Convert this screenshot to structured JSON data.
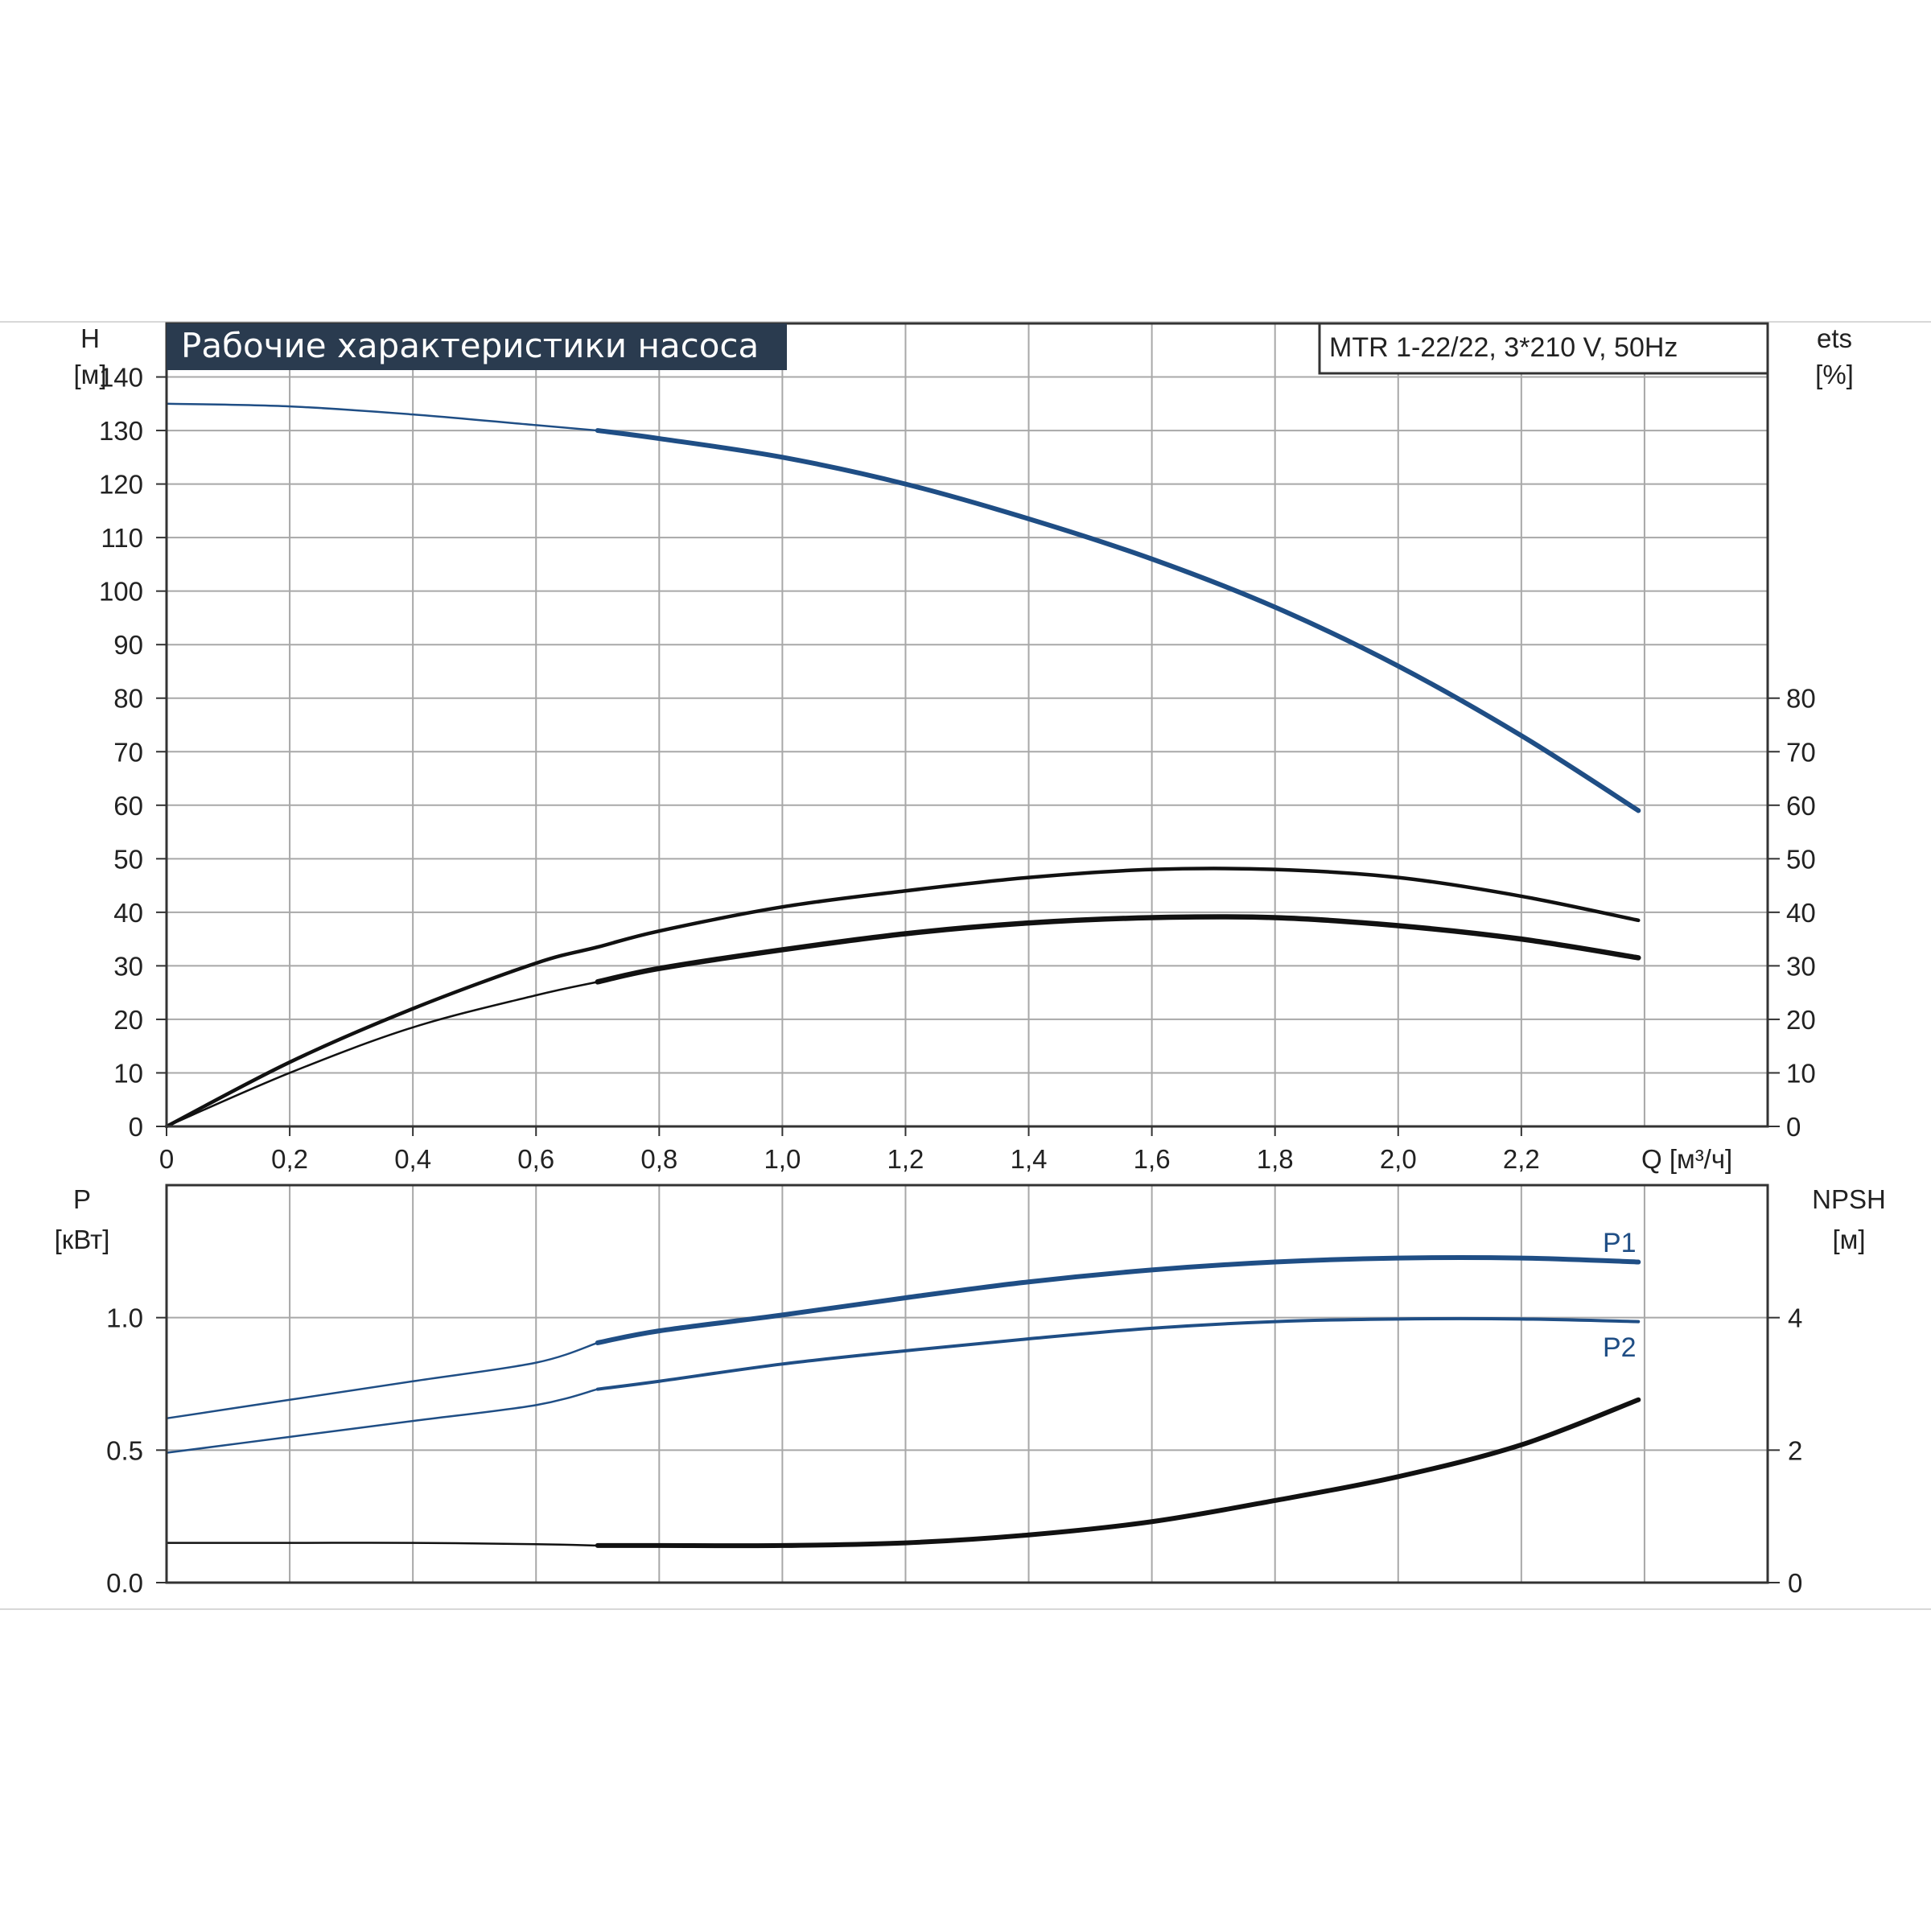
{
  "chart_data": [
    {
      "type": "line",
      "title": "Рабочие характеристики насоса",
      "model_label": "MTR 1-22/22, 3*210 V, 50Hz",
      "left_axis": {
        "label_top": "H",
        "label_unit": "[м]",
        "ylim": [
          0,
          150
        ],
        "ticks": [
          "0",
          "10",
          "20",
          "30",
          "40",
          "50",
          "60",
          "70",
          "80",
          "90",
          "100",
          "110",
          "120",
          "130",
          "140"
        ]
      },
      "right_axis": {
        "label_top": "ets",
        "label_unit": "[%]",
        "ylim": [
          0,
          150
        ],
        "ticks": [
          "0",
          "10",
          "20",
          "30",
          "40",
          "50",
          "60",
          "70",
          "80"
        ]
      },
      "x_axis": {
        "label": "Q [м³/ч]",
        "xlim": [
          0,
          2.6
        ],
        "ticks": [
          "0",
          "0,2",
          "0,4",
          "0,6",
          "0,8",
          "1,0",
          "1,2",
          "1,4",
          "1,6",
          "1,8",
          "2,0",
          "2,2"
        ]
      },
      "grid": true,
      "series": [
        {
          "axis": "left",
          "color": "#1f4e85",
          "operating_range_from": 0.7,
          "x": [
            0,
            0.2,
            0.4,
            0.6,
            0.7,
            0.8,
            1.0,
            1.2,
            1.4,
            1.6,
            1.8,
            2.0,
            2.2,
            2.39
          ],
          "values": [
            135,
            134.5,
            133,
            131,
            130,
            128.5,
            125,
            120,
            113.5,
            106,
            97,
            86,
            73,
            59
          ]
        },
        {
          "axis": "right",
          "color": "#111111",
          "operating_range_from": 0,
          "x": [
            0,
            0.2,
            0.4,
            0.6,
            0.7,
            0.8,
            1.0,
            1.2,
            1.4,
            1.6,
            1.8,
            2.0,
            2.2,
            2.39
          ],
          "values": [
            0,
            12,
            22,
            30.5,
            33.5,
            36.5,
            41,
            44,
            46.5,
            48,
            48,
            46.5,
            43,
            38.5
          ]
        },
        {
          "axis": "right",
          "color": "#111111",
          "operating_range_from": 0.7,
          "x": [
            0,
            0.2,
            0.4,
            0.6,
            0.7,
            0.8,
            1.0,
            1.2,
            1.4,
            1.6,
            1.8,
            2.0,
            2.2,
            2.39
          ],
          "values": [
            0,
            10,
            18.5,
            24.5,
            27,
            29.5,
            33,
            36,
            38,
            39,
            39,
            37.5,
            35,
            31.5
          ]
        }
      ]
    },
    {
      "type": "line",
      "left_axis": {
        "label_top": "P",
        "label_unit": "[кВт]",
        "ylim": [
          0,
          1.5
        ],
        "ticks": [
          "0.0",
          "0.5",
          "1.0"
        ]
      },
      "right_axis": {
        "label_top": "NPSH",
        "label_unit": "[м]",
        "ylim": [
          0,
          6
        ],
        "ticks": [
          "0",
          "2",
          "4"
        ]
      },
      "xlim": [
        0,
        2.6
      ],
      "grid": true,
      "series": [
        {
          "name": "P1",
          "axis": "left",
          "color": "#1f4e85",
          "operating_range_from": 0.7,
          "x": [
            0,
            0.2,
            0.4,
            0.6,
            0.7,
            0.8,
            1.0,
            1.2,
            1.4,
            1.6,
            1.8,
            2.0,
            2.2,
            2.39
          ],
          "values": [
            0.62,
            0.69,
            0.76,
            0.83,
            0.905,
            0.95,
            1.01,
            1.075,
            1.135,
            1.18,
            1.21,
            1.225,
            1.225,
            1.21
          ]
        },
        {
          "name": "P2",
          "axis": "left",
          "color": "#1f4e85",
          "operating_range_from": 0.7,
          "x": [
            0,
            0.2,
            0.4,
            0.6,
            0.7,
            0.8,
            1.0,
            1.2,
            1.4,
            1.6,
            1.8,
            2.0,
            2.2,
            2.39
          ],
          "values": [
            0.49,
            0.55,
            0.61,
            0.67,
            0.73,
            0.76,
            0.825,
            0.875,
            0.92,
            0.96,
            0.985,
            0.995,
            0.995,
            0.985
          ]
        },
        {
          "axis": "right",
          "color": "#111111",
          "operating_range_from": 0.7,
          "x": [
            0,
            0.2,
            0.4,
            0.6,
            0.7,
            0.8,
            1.0,
            1.2,
            1.4,
            1.6,
            1.8,
            2.0,
            2.2,
            2.39
          ],
          "values": [
            0.6,
            0.6,
            0.6,
            0.58,
            0.56,
            0.56,
            0.56,
            0.6,
            0.72,
            0.92,
            1.24,
            1.6,
            2.08,
            2.76
          ]
        }
      ]
    }
  ]
}
